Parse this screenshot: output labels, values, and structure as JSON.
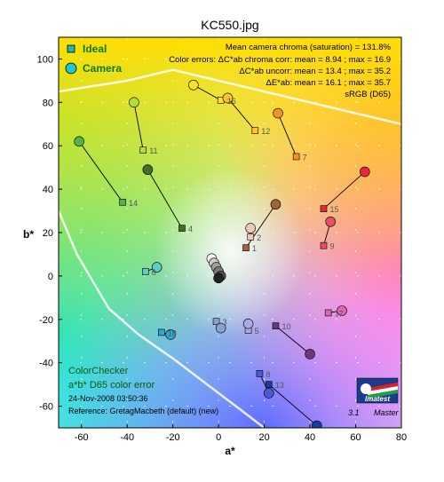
{
  "chart_data": {
    "type": "scatter",
    "title": "KC550.jpg",
    "xlabel": "a*",
    "ylabel": "b*",
    "xlim": [
      -70,
      80
    ],
    "ylim": [
      -70,
      110
    ],
    "xticks": [
      -60,
      -40,
      -20,
      0,
      20,
      40,
      60,
      80
    ],
    "yticks": [
      -60,
      -40,
      -20,
      0,
      20,
      40,
      60,
      80,
      100
    ],
    "grid": true,
    "legend": {
      "placement": "top-left",
      "entries": [
        {
          "label": "Ideal",
          "marker": "square"
        },
        {
          "label": "Camera",
          "marker": "circle"
        }
      ]
    },
    "stats_lines": [
      "Mean camera chroma (saturation) = 131.8%",
      "Color errors: ΔC*ab chroma corr:  mean = 8.94 ;  max = 16.9",
      "ΔC*ab uncorr:  mean = 13.4 ;  max = 35.2",
      "ΔE*ab:  mean = 16.1 ;  max = 35.7",
      "sRGB (D65)"
    ],
    "footer_lines": [
      "ColorChecker",
      "a*b* D65 color error",
      "24-Nov-2008 03:50:36",
      "Reference: GretagMacbeth (default) (new)"
    ],
    "brand": {
      "name": "Imatest",
      "version": "3.1",
      "edition": "Master"
    },
    "patches": [
      {
        "id": "1",
        "ideal": [
          12,
          13
        ],
        "camera": [
          25,
          33
        ],
        "color": "#a0643c"
      },
      {
        "id": "2",
        "ideal": [
          14,
          18
        ],
        "camera": [
          14,
          22
        ],
        "color": "#f0c8b4"
      },
      {
        "id": "3",
        "ideal": [
          -1,
          -21
        ],
        "camera": [
          1,
          -24
        ],
        "color": "#8ca0d2"
      },
      {
        "id": "4",
        "ideal": [
          -16,
          22
        ],
        "camera": [
          -31,
          49
        ],
        "color": "#466e23"
      },
      {
        "id": "5",
        "ideal": [
          13,
          -25
        ],
        "camera": [
          13,
          -22
        ],
        "color": "#aaaae1"
      },
      {
        "id": "6",
        "ideal": [
          -32,
          2
        ],
        "camera": [
          -27,
          4
        ],
        "color": "#5fcdc3"
      },
      {
        "id": "7",
        "ideal": [
          34,
          55
        ],
        "camera": [
          26,
          75
        ],
        "color": "#f0961e"
      },
      {
        "id": "8",
        "ideal": [
          18,
          -45
        ],
        "camera": [
          22,
          -54
        ],
        "color": "#4b5ad2"
      },
      {
        "id": "9",
        "ideal": [
          46,
          14
        ],
        "camera": [
          49,
          25
        ],
        "color": "#e65064"
      },
      {
        "id": "10",
        "ideal": [
          25,
          -23
        ],
        "camera": [
          40,
          -36
        ],
        "color": "#6e3778"
      },
      {
        "id": "11",
        "ideal": [
          -33,
          58
        ],
        "camera": [
          -37,
          80
        ],
        "color": "#b4dc37"
      },
      {
        "id": "12",
        "ideal": [
          16,
          67
        ],
        "camera": [
          4,
          82
        ],
        "color": "#ffc332"
      },
      {
        "id": "13",
        "ideal": [
          22,
          -50
        ],
        "camera": [
          43,
          -69
        ],
        "color": "#1e3ca0"
      },
      {
        "id": "14",
        "ideal": [
          -42,
          34
        ],
        "camera": [
          -61,
          62
        ],
        "color": "#50b446"
      },
      {
        "id": "15",
        "ideal": [
          46,
          31
        ],
        "camera": [
          64,
          48
        ],
        "color": "#e6283c"
      },
      {
        "id": "16",
        "ideal": [
          1,
          81
        ],
        "camera": [
          -11,
          88
        ],
        "color": "#ffe11e"
      },
      {
        "id": "17",
        "ideal": [
          48,
          -17
        ],
        "camera": [
          54,
          -16
        ],
        "color": "#e164b4"
      },
      {
        "id": "18",
        "ideal": [
          -25,
          -26
        ],
        "camera": [
          -21,
          -27
        ],
        "color": "#28aad2"
      },
      {
        "id": "19",
        "ideal": [
          0,
          2
        ],
        "camera": [
          -3,
          8
        ],
        "color": "#f5f5f5"
      },
      {
        "id": "20",
        "ideal": [
          0,
          1
        ],
        "camera": [
          -2,
          6
        ],
        "color": "#cbcbcb"
      },
      {
        "id": "21",
        "ideal": [
          0,
          0
        ],
        "camera": [
          -1,
          4
        ],
        "color": "#a0a0a0"
      },
      {
        "id": "22",
        "ideal": [
          0,
          0
        ],
        "camera": [
          0,
          2
        ],
        "color": "#7a7a7a"
      },
      {
        "id": "23",
        "ideal": [
          0,
          0
        ],
        "camera": [
          1,
          0
        ],
        "color": "#555555"
      },
      {
        "id": "24",
        "ideal": [
          0,
          0
        ],
        "camera": [
          0,
          -1
        ],
        "color": "#222222"
      }
    ],
    "gamut_lines": [
      [
        [
          -70,
          85
        ],
        [
          -40,
          90
        ],
        [
          -20,
          95
        ],
        [
          0,
          90
        ],
        [
          20,
          85
        ],
        [
          40,
          80
        ],
        [
          60,
          75
        ],
        [
          80,
          70
        ]
      ],
      [
        [
          -70,
          30
        ],
        [
          -62,
          10
        ],
        [
          -48,
          -15
        ],
        [
          -35,
          -27
        ],
        [
          -20,
          -38
        ],
        [
          -5,
          -50
        ],
        [
          10,
          -62
        ],
        [
          20,
          -70
        ]
      ]
    ]
  }
}
